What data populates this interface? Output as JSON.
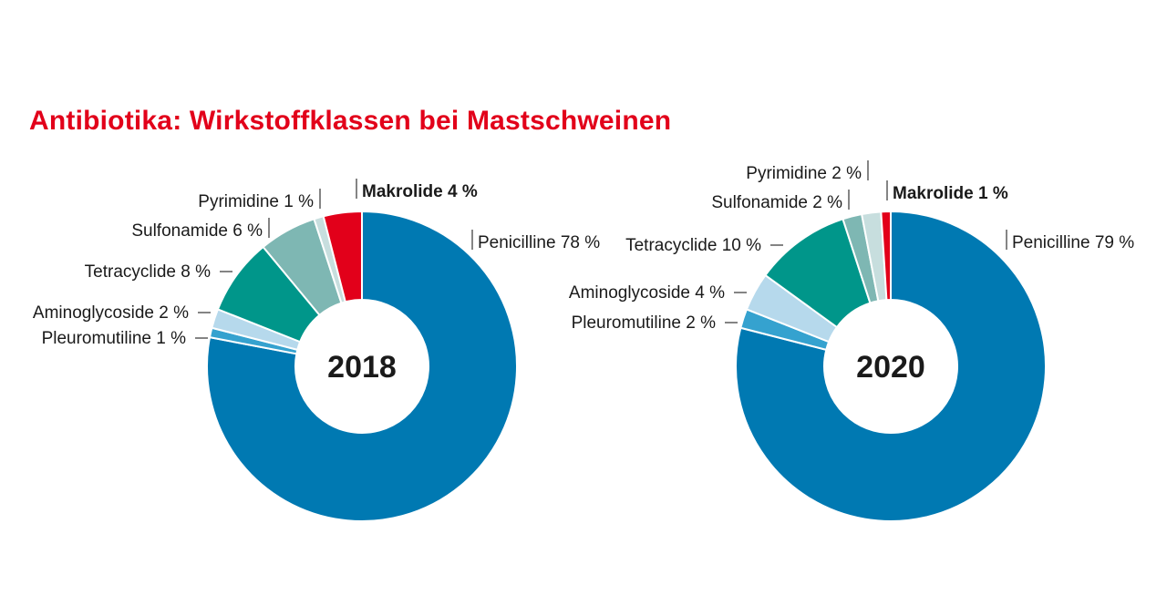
{
  "title": "Antibiotika: Wirkstoffklassen bei Mastschweinen",
  "colors": {
    "title": "#e2001a",
    "Penicilline": "#0079b2",
    "Pleuromutiline": "#35a2cf",
    "Aminoglycoside": "#b6d9ec",
    "Tetracyclide": "#00968a",
    "Sulfonamide": "#7eb7b3",
    "Pyrimidine": "#c7dede",
    "Makrolide": "#e2001a"
  },
  "chart_data": [
    {
      "type": "pie",
      "center_label": "2018",
      "slices": [
        {
          "name": "Penicilline",
          "value": 78,
          "label": "Penicilline 78 %",
          "bold": false
        },
        {
          "name": "Pleuromutiline",
          "value": 1,
          "label": "Pleuromutiline 1 %",
          "bold": false
        },
        {
          "name": "Aminoglycoside",
          "value": 2,
          "label": "Aminoglycoside 2 %",
          "bold": false
        },
        {
          "name": "Tetracyclide",
          "value": 8,
          "label": "Tetracyclide 8 %",
          "bold": false
        },
        {
          "name": "Sulfonamide",
          "value": 6,
          "label": "Sulfonamide 6 %",
          "bold": false
        },
        {
          "name": "Pyrimidine",
          "value": 1,
          "label": "Pyrimidine 1 %",
          "bold": false
        },
        {
          "name": "Makrolide",
          "value": 4,
          "label": "Makrolide 4 %",
          "bold": true
        }
      ]
    },
    {
      "type": "pie",
      "center_label": "2020",
      "slices": [
        {
          "name": "Penicilline",
          "value": 79,
          "label": "Penicilline 79 %",
          "bold": false
        },
        {
          "name": "Pleuromutiline",
          "value": 2,
          "label": "Pleuromutiline 2 %",
          "bold": false
        },
        {
          "name": "Aminoglycoside",
          "value": 4,
          "label": "Aminoglycoside 4 %",
          "bold": false
        },
        {
          "name": "Tetracyclide",
          "value": 10,
          "label": "Tetracyclide 10 %",
          "bold": false
        },
        {
          "name": "Sulfonamide",
          "value": 2,
          "label": "Sulfonamide 2 %",
          "bold": false
        },
        {
          "name": "Pyrimidine",
          "value": 2,
          "label": "Pyrimidine 2 %",
          "bold": false
        },
        {
          "name": "Makrolide",
          "value": 1,
          "label": "Makrolide 1 %",
          "bold": true
        }
      ]
    }
  ]
}
